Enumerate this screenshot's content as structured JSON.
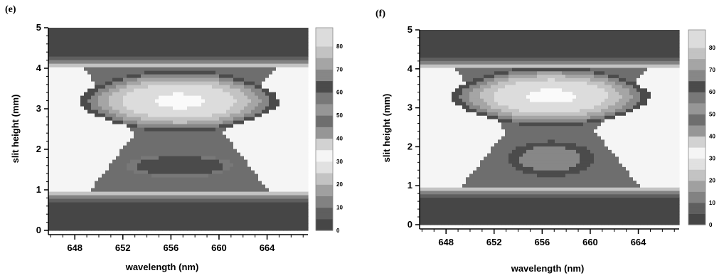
{
  "panels": [
    {
      "label": "(e)"
    },
    {
      "label": "(f)"
    }
  ],
  "chart_data": [
    {
      "type": "heatmap",
      "panel": "(e)",
      "xlabel": "wavelength (nm)",
      "ylabel": "slit height (mm)",
      "xticks": [
        "648",
        "652",
        "656",
        "660",
        "664"
      ],
      "yticks": [
        "0",
        "1",
        "2",
        "3",
        "4",
        "5"
      ],
      "xlim": [
        645.8,
        667.4
      ],
      "ylim": [
        0,
        5
      ],
      "colorbar": {
        "ticks": [
          "0",
          "10",
          "20",
          "30",
          "40",
          "50",
          "60",
          "70",
          "80"
        ],
        "range": [
          0,
          88
        ]
      },
      "features": {
        "upper_lobe": {
          "center_x": 656.7,
          "center_y": 3.2,
          "peak": 85
        },
        "lower_core": {
          "center_x": 656.8,
          "center_y": 1.6,
          "value": 58
        },
        "outer_bright_edge": {
          "value": 30
        }
      }
    },
    {
      "type": "heatmap",
      "panel": "(f)",
      "xlabel": "wavelength (nm)",
      "ylabel": "slit height (mm)",
      "xticks": [
        "648",
        "652",
        "656",
        "660",
        "664"
      ],
      "yticks": [
        "0",
        "1",
        "2",
        "3",
        "4",
        "5"
      ],
      "xlim": [
        645.8,
        667.4
      ],
      "ylim": [
        0,
        5
      ],
      "colorbar": {
        "ticks": [
          "0",
          "10",
          "20",
          "30",
          "40",
          "50",
          "60",
          "70",
          "80"
        ],
        "range": [
          0,
          88
        ]
      },
      "features": {
        "upper_lobe": {
          "center_x": 656.7,
          "center_y": 3.3,
          "peak": 85
        },
        "lower_core": {
          "center_x": 656.8,
          "center_y": 1.7,
          "value": 62
        },
        "outer_bright_edge": {
          "value": 30
        }
      }
    }
  ]
}
